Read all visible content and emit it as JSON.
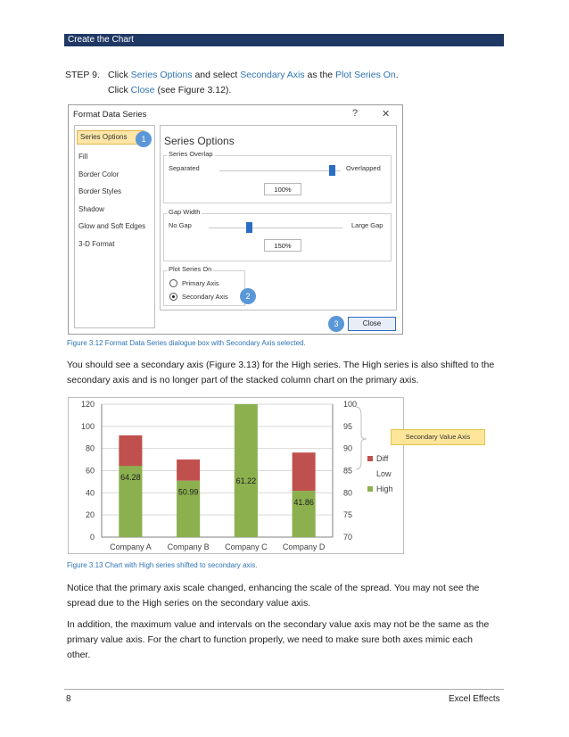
{
  "header": {
    "title": "Create the Chart"
  },
  "step": {
    "number": "STEP 9.",
    "line1_pre": "Click ",
    "line1_link1": "Series Options",
    "line1_mid": " and select ",
    "line1_link2": "Secondary Axis",
    "line1_mid2": " as the ",
    "line1_link3": "Plot Series On",
    "line1_end": ".",
    "line2_pre": "Click ",
    "line2_link": "Close",
    "line2_end": " (see Figure 3.12)."
  },
  "dialog": {
    "title": "Format Data Series",
    "help": "?",
    "close_x": "✕",
    "list": [
      "Series Options",
      "Fill",
      "Border Color",
      "Border Styles",
      "Shadow",
      "Glow and Soft Edges",
      "3-D Format"
    ],
    "pane_title": "Series Options",
    "overlap": {
      "legend": "Series Overlap",
      "left": "Separated",
      "right": "Overlapped",
      "value": "100%",
      "fraction": 1.0
    },
    "gap": {
      "legend": "Gap Width",
      "left": "No Gap",
      "right": "Large Gap",
      "value": "150%",
      "fraction": 0.3
    },
    "plot_on": {
      "legend": "Plot Series On",
      "primary": "Primary Axis",
      "secondary": "Secondary Axis"
    },
    "close_label": "Close",
    "badges": [
      "1",
      "2",
      "3"
    ],
    "accent": "#5a97d8"
  },
  "captions": {
    "fig312": "Figure 3.12 Format Data Series dialogue box with Secondary Axis selected.",
    "fig313": "Figure 3.13 Chart with High series shifted to secondary axis."
  },
  "paragraphs": {
    "p1_a": "You should see a secondary axis (Figure 3.13) for the High series.  The High series is also shifted to the",
    "p1_b": "secondary axis and is no longer part of the stacked column chart on the primary axis.",
    "p2_a": "Notice that the primary axis scale changed, enhancing the scale of the spread.  You may not see the",
    "p2_b": "spread due to the High series on the secondary value axis.",
    "p3_a": "In addition, the maximum value and intervals on the secondary value axis may not be the same as the",
    "p3_b": "primary value axis.  For the chart to function properly, we need to make sure both axes mimic each",
    "p3_c": "other."
  },
  "chart_data": {
    "type": "bar",
    "categories": [
      "Company A",
      "Company B",
      "Company C",
      "Company D"
    ],
    "primary_axis": {
      "ylim": [
        0,
        120
      ],
      "ticks": [
        0,
        20,
        40,
        60,
        80,
        100,
        120
      ]
    },
    "secondary_axis": {
      "ylim": [
        70,
        100
      ],
      "ticks": [
        70,
        75,
        80,
        85,
        90,
        95,
        100
      ]
    },
    "series": [
      {
        "name": "High",
        "axis": "secondary",
        "values": [
          91.9,
          79.7,
          100.3,
          78.6
        ],
        "color": "#8db04f"
      },
      {
        "name": "Low",
        "axis": "primary",
        "values": [
          64.28,
          50.99,
          61.22,
          41.86
        ],
        "color": "#8db04f"
      },
      {
        "name": "Diff",
        "axis": "primary",
        "values": [
          27.6,
          19.1,
          0,
          34.5
        ],
        "color": "#c0504d"
      }
    ],
    "data_labels": [
      "64.28",
      "50.99",
      "61.22",
      "41.86"
    ],
    "legend": [
      "Diff",
      "Low",
      "High"
    ],
    "legend_position": "right",
    "callout": "Secondary Value Axis",
    "grid": true
  },
  "footer": {
    "page": "8",
    "title": "Excel Effects"
  }
}
